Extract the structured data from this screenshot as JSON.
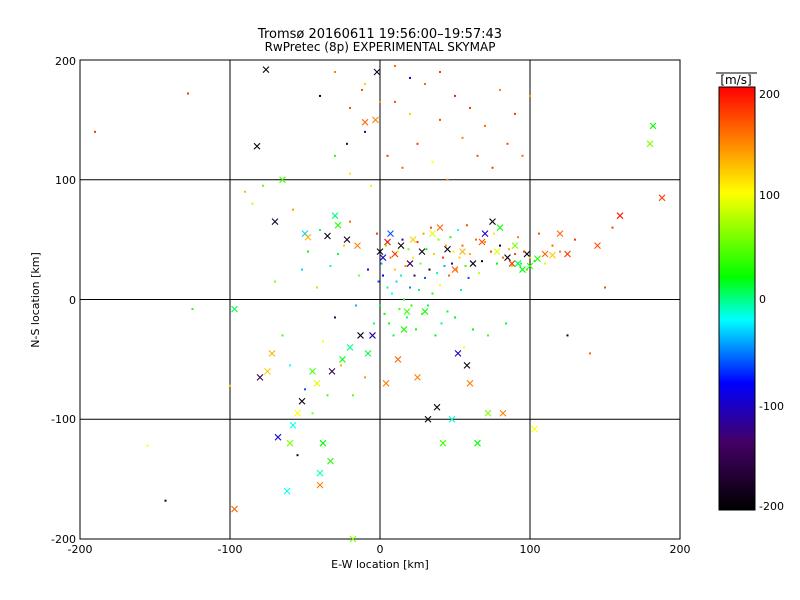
{
  "chart_data": {
    "type": "scatter",
    "title": "Tromsø 20160611 19:56:00–19:57:43",
    "subtitle": "RwPretec (8p) EXPERIMENTAL SKYMAP",
    "xlabel": "E-W location [km]",
    "ylabel": "N-S location [km]",
    "xlim": [
      -200,
      200
    ],
    "ylim": [
      -200,
      200
    ],
    "xticks": [
      "-200",
      "-100",
      "0",
      "100",
      "200"
    ],
    "yticks": [
      "-200",
      "-100",
      "0",
      "100",
      "200"
    ],
    "grid": true,
    "colorbar": {
      "label": "[m/s]",
      "range": [
        -200,
        200
      ],
      "ticks": [
        "-200",
        "-100",
        "0",
        "100",
        "200"
      ],
      "colormap": [
        "#000000",
        "#440066",
        "#0000ff",
        "#00ffff",
        "#00ff00",
        "#ffff00",
        "#ff0000"
      ]
    },
    "series": [
      {
        "marker": "x",
        "points": [
          [
            -97,
            -8,
            10
          ],
          [
            -97,
            -175,
            160
          ],
          [
            -82,
            128,
            -190
          ],
          [
            -76,
            192,
            -190
          ],
          [
            -80,
            -65,
            -150
          ],
          [
            -75,
            -60,
            120
          ],
          [
            -72,
            -45,
            130
          ],
          [
            -70,
            65,
            -180
          ],
          [
            -68,
            -115,
            -90
          ],
          [
            -65,
            100,
            40
          ],
          [
            -62,
            -160,
            -20
          ],
          [
            -60,
            -120,
            60
          ],
          [
            -58,
            -105,
            -20
          ],
          [
            -55,
            -95,
            100
          ],
          [
            -52,
            -85,
            -190
          ],
          [
            -50,
            55,
            -30
          ],
          [
            -48,
            52,
            130
          ],
          [
            -45,
            -60,
            40
          ],
          [
            -42,
            -70,
            90
          ],
          [
            -40,
            -155,
            150
          ],
          [
            -40,
            -145,
            -10
          ],
          [
            -38,
            -120,
            20
          ],
          [
            -35,
            53,
            -190
          ],
          [
            -33,
            -135,
            30
          ],
          [
            -32,
            -60,
            -150
          ],
          [
            -30,
            70,
            0
          ],
          [
            -28,
            62,
            30
          ],
          [
            -25,
            -50,
            20
          ],
          [
            -22,
            50,
            -180
          ],
          [
            -20,
            -40,
            0
          ],
          [
            -18,
            -200,
            60
          ],
          [
            -15,
            45,
            150
          ],
          [
            -13,
            -30,
            -180
          ],
          [
            -10,
            148,
            160
          ],
          [
            -8,
            -45,
            10
          ],
          [
            -5,
            -30,
            -110
          ],
          [
            -3,
            150,
            150
          ],
          [
            -2,
            190,
            -180
          ],
          [
            0,
            40,
            -190
          ],
          [
            2,
            35,
            -100
          ],
          [
            4,
            -70,
            150
          ],
          [
            5,
            48,
            200
          ],
          [
            7,
            55,
            -60
          ],
          [
            10,
            38,
            180
          ],
          [
            12,
            -50,
            160
          ],
          [
            14,
            45,
            -190
          ],
          [
            16,
            -25,
            30
          ],
          [
            18,
            -10,
            40
          ],
          [
            20,
            30,
            -150
          ],
          [
            22,
            50,
            120
          ],
          [
            25,
            -65,
            150
          ],
          [
            28,
            40,
            -190
          ],
          [
            30,
            -10,
            20
          ],
          [
            32,
            -100,
            -190
          ],
          [
            35,
            55,
            90
          ],
          [
            38,
            -90,
            -190
          ],
          [
            40,
            60,
            160
          ],
          [
            42,
            -120,
            40
          ],
          [
            45,
            42,
            -190
          ],
          [
            48,
            -100,
            -10
          ],
          [
            50,
            25,
            160
          ],
          [
            52,
            -45,
            -100
          ],
          [
            55,
            40,
            130
          ],
          [
            58,
            -55,
            -190
          ],
          [
            60,
            -70,
            150
          ],
          [
            62,
            30,
            -190
          ],
          [
            65,
            -120,
            20
          ],
          [
            68,
            48,
            170
          ],
          [
            70,
            55,
            -100
          ],
          [
            72,
            -95,
            60
          ],
          [
            75,
            65,
            -190
          ],
          [
            78,
            40,
            90
          ],
          [
            80,
            60,
            20
          ],
          [
            82,
            -95,
            150
          ],
          [
            85,
            35,
            -190
          ],
          [
            88,
            30,
            180
          ],
          [
            90,
            45,
            60
          ],
          [
            92,
            30,
            10
          ],
          [
            95,
            25,
            20
          ],
          [
            98,
            38,
            -190
          ],
          [
            100,
            28,
            40
          ],
          [
            103,
            -108,
            100
          ],
          [
            105,
            34,
            30
          ],
          [
            110,
            38,
            160
          ],
          [
            115,
            37,
            120
          ],
          [
            120,
            55,
            160
          ],
          [
            125,
            38,
            180
          ],
          [
            145,
            45,
            170
          ],
          [
            160,
            70,
            190
          ],
          [
            180,
            130,
            60
          ],
          [
            182,
            145,
            20
          ],
          [
            188,
            85,
            180
          ]
        ]
      },
      {
        "marker": "dot",
        "points": [
          [
            -190,
            140,
            180
          ],
          [
            -128,
            172,
            180
          ],
          [
            -125,
            -8,
            30
          ],
          [
            -155,
            -122,
            100
          ],
          [
            -143,
            -168,
            -190
          ],
          [
            -100,
            -72,
            120
          ],
          [
            -90,
            90,
            130
          ],
          [
            -85,
            80,
            80
          ],
          [
            -78,
            95,
            50
          ],
          [
            -70,
            15,
            60
          ],
          [
            -65,
            -30,
            40
          ],
          [
            -60,
            -55,
            -20
          ],
          [
            -58,
            75,
            140
          ],
          [
            -55,
            -130,
            -180
          ],
          [
            -52,
            25,
            -30
          ],
          [
            -50,
            -75,
            -60
          ],
          [
            -48,
            40,
            20
          ],
          [
            -45,
            -95,
            60
          ],
          [
            -42,
            10,
            70
          ],
          [
            -40,
            58,
            0
          ],
          [
            -38,
            -35,
            100
          ],
          [
            -35,
            -80,
            40
          ],
          [
            -33,
            28,
            -10
          ],
          [
            -30,
            -15,
            -150
          ],
          [
            -28,
            38,
            10
          ],
          [
            -26,
            -55,
            130
          ],
          [
            -24,
            45,
            120
          ],
          [
            -22,
            130,
            -150
          ],
          [
            -20,
            65,
            160
          ],
          [
            -18,
            -80,
            50
          ],
          [
            -16,
            -5,
            -40
          ],
          [
            -14,
            20,
            60
          ],
          [
            -12,
            175,
            170
          ],
          [
            -10,
            -65,
            140
          ],
          [
            -8,
            25,
            -100
          ],
          [
            -6,
            95,
            90
          ],
          [
            -4,
            -20,
            0
          ],
          [
            -2,
            55,
            180
          ],
          [
            -1,
            15,
            -60
          ],
          [
            0,
            -5,
            10
          ],
          [
            1,
            30,
            -40
          ],
          [
            2,
            20,
            -80
          ],
          [
            3,
            -12,
            20
          ],
          [
            4,
            45,
            60
          ],
          [
            5,
            10,
            0
          ],
          [
            6,
            -20,
            30
          ],
          [
            7,
            35,
            160
          ],
          [
            8,
            5,
            -20
          ],
          [
            9,
            -30,
            10
          ],
          [
            10,
            25,
            120
          ],
          [
            11,
            15,
            -30
          ],
          [
            12,
            40,
            90
          ],
          [
            13,
            -8,
            40
          ],
          [
            14,
            20,
            -10
          ],
          [
            15,
            50,
            -120
          ],
          [
            16,
            0,
            20
          ],
          [
            17,
            28,
            150
          ],
          [
            18,
            -15,
            0
          ],
          [
            19,
            42,
            60
          ],
          [
            20,
            10,
            -50
          ],
          [
            21,
            -5,
            30
          ],
          [
            22,
            35,
            110
          ],
          [
            23,
            20,
            -150
          ],
          [
            24,
            -25,
            20
          ],
          [
            25,
            48,
            180
          ],
          [
            26,
            8,
            0
          ],
          [
            27,
            30,
            60
          ],
          [
            28,
            -12,
            40
          ],
          [
            29,
            55,
            140
          ],
          [
            30,
            18,
            -60
          ],
          [
            31,
            42,
            20
          ],
          [
            32,
            -5,
            10
          ],
          [
            33,
            25,
            -190
          ],
          [
            34,
            60,
            170
          ],
          [
            35,
            5,
            30
          ],
          [
            36,
            38,
            120
          ],
          [
            37,
            -30,
            20
          ],
          [
            38,
            22,
            -10
          ],
          [
            39,
            50,
            60
          ],
          [
            40,
            12,
            100
          ],
          [
            41,
            -20,
            0
          ],
          [
            42,
            35,
            180
          ],
          [
            43,
            28,
            -40
          ],
          [
            44,
            45,
            140
          ],
          [
            45,
            -10,
            10
          ],
          [
            46,
            20,
            160
          ],
          [
            47,
            52,
            30
          ],
          [
            48,
            30,
            -100
          ],
          [
            49,
            40,
            90
          ],
          [
            50,
            -15,
            20
          ],
          [
            51,
            25,
            150
          ],
          [
            52,
            58,
            -20
          ],
          [
            53,
            35,
            120
          ],
          [
            54,
            8,
            0
          ],
          [
            55,
            45,
            160
          ],
          [
            56,
            -40,
            100
          ],
          [
            57,
            28,
            40
          ],
          [
            58,
            62,
            170
          ],
          [
            59,
            18,
            -60
          ],
          [
            60,
            38,
            130
          ],
          [
            62,
            -25,
            20
          ],
          [
            64,
            50,
            160
          ],
          [
            66,
            22,
            80
          ],
          [
            68,
            32,
            -190
          ],
          [
            70,
            48,
            140
          ],
          [
            72,
            -30,
            40
          ],
          [
            74,
            40,
            170
          ],
          [
            76,
            55,
            110
          ],
          [
            78,
            30,
            20
          ],
          [
            80,
            45,
            -190
          ],
          [
            82,
            35,
            160
          ],
          [
            84,
            -20,
            10
          ],
          [
            86,
            42,
            130
          ],
          [
            88,
            28,
            60
          ],
          [
            90,
            38,
            170
          ],
          [
            92,
            52,
            150
          ],
          [
            94,
            30,
            0
          ],
          [
            96,
            40,
            180
          ],
          [
            98,
            25,
            40
          ],
          [
            100,
            35,
            120
          ],
          [
            103,
            32,
            20
          ],
          [
            106,
            55,
            170
          ],
          [
            110,
            30,
            90
          ],
          [
            115,
            45,
            160
          ],
          [
            120,
            40,
            150
          ],
          [
            125,
            -30,
            -190
          ],
          [
            130,
            50,
            180
          ],
          [
            140,
            -45,
            160
          ],
          [
            150,
            10,
            170
          ],
          [
            155,
            60,
            180
          ],
          [
            -30,
            120,
            30
          ],
          [
            -20,
            105,
            110
          ],
          [
            -10,
            140,
            -100
          ],
          [
            5,
            120,
            180
          ],
          [
            10,
            165,
            170
          ],
          [
            15,
            110,
            160
          ],
          [
            20,
            155,
            120
          ],
          [
            25,
            130,
            180
          ],
          [
            30,
            180,
            160
          ],
          [
            35,
            115,
            100
          ],
          [
            40,
            150,
            170
          ],
          [
            45,
            100,
            140
          ],
          [
            50,
            170,
            190
          ],
          [
            55,
            135,
            150
          ],
          [
            60,
            160,
            180
          ],
          [
            65,
            120,
            170
          ],
          [
            70,
            145,
            160
          ],
          [
            75,
            110,
            180
          ],
          [
            80,
            175,
            150
          ],
          [
            85,
            130,
            170
          ],
          [
            90,
            155,
            180
          ],
          [
            95,
            120,
            160
          ],
          [
            100,
            170,
            140
          ],
          [
            -40,
            170,
            -190
          ],
          [
            -30,
            190,
            150
          ],
          [
            -20,
            160,
            170
          ],
          [
            -10,
            180,
            120
          ],
          [
            0,
            165,
            140
          ],
          [
            10,
            195,
            160
          ],
          [
            20,
            185,
            -100
          ],
          [
            40,
            190,
            180
          ]
        ]
      }
    ]
  }
}
